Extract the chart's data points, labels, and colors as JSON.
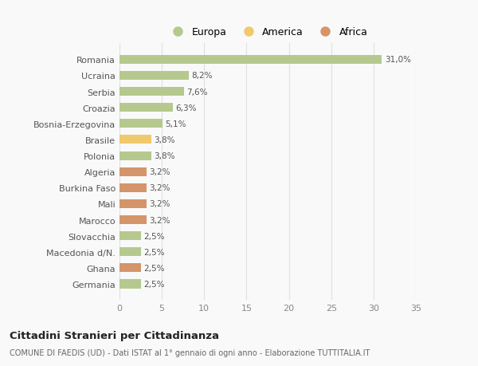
{
  "categories": [
    "Germania",
    "Ghana",
    "Macedonia d/N.",
    "Slovacchia",
    "Marocco",
    "Mali",
    "Burkina Faso",
    "Algeria",
    "Polonia",
    "Brasile",
    "Bosnia-Erzegovina",
    "Croazia",
    "Serbia",
    "Ucraina",
    "Romania"
  ],
  "values": [
    2.5,
    2.5,
    2.5,
    2.5,
    3.2,
    3.2,
    3.2,
    3.2,
    3.8,
    3.8,
    5.1,
    6.3,
    7.6,
    8.2,
    31.0
  ],
  "labels": [
    "2,5%",
    "2,5%",
    "2,5%",
    "2,5%",
    "3,2%",
    "3,2%",
    "3,2%",
    "3,2%",
    "3,8%",
    "3,8%",
    "5,1%",
    "6,3%",
    "7,6%",
    "8,2%",
    "31,0%"
  ],
  "colors": [
    "#b5c98e",
    "#d4956a",
    "#b5c98e",
    "#b5c98e",
    "#d4956a",
    "#d4956a",
    "#d4956a",
    "#d4956a",
    "#b5c98e",
    "#f0c96e",
    "#b5c98e",
    "#b5c98e",
    "#b5c98e",
    "#b5c98e",
    "#b5c98e"
  ],
  "legend_labels": [
    "Europa",
    "America",
    "Africa"
  ],
  "legend_colors": [
    "#b5c98e",
    "#f0c96e",
    "#d4956a"
  ],
  "title": "Cittadini Stranieri per Cittadinanza",
  "subtitle": "COMUNE DI FAEDIS (UD) - Dati ISTAT al 1° gennaio di ogni anno - Elaborazione TUTTITALIA.IT",
  "xlim": [
    0,
    35
  ],
  "xticks": [
    0,
    5,
    10,
    15,
    20,
    25,
    30,
    35
  ],
  "background_color": "#f9f9f9",
  "grid_color": "#e0e0e0"
}
